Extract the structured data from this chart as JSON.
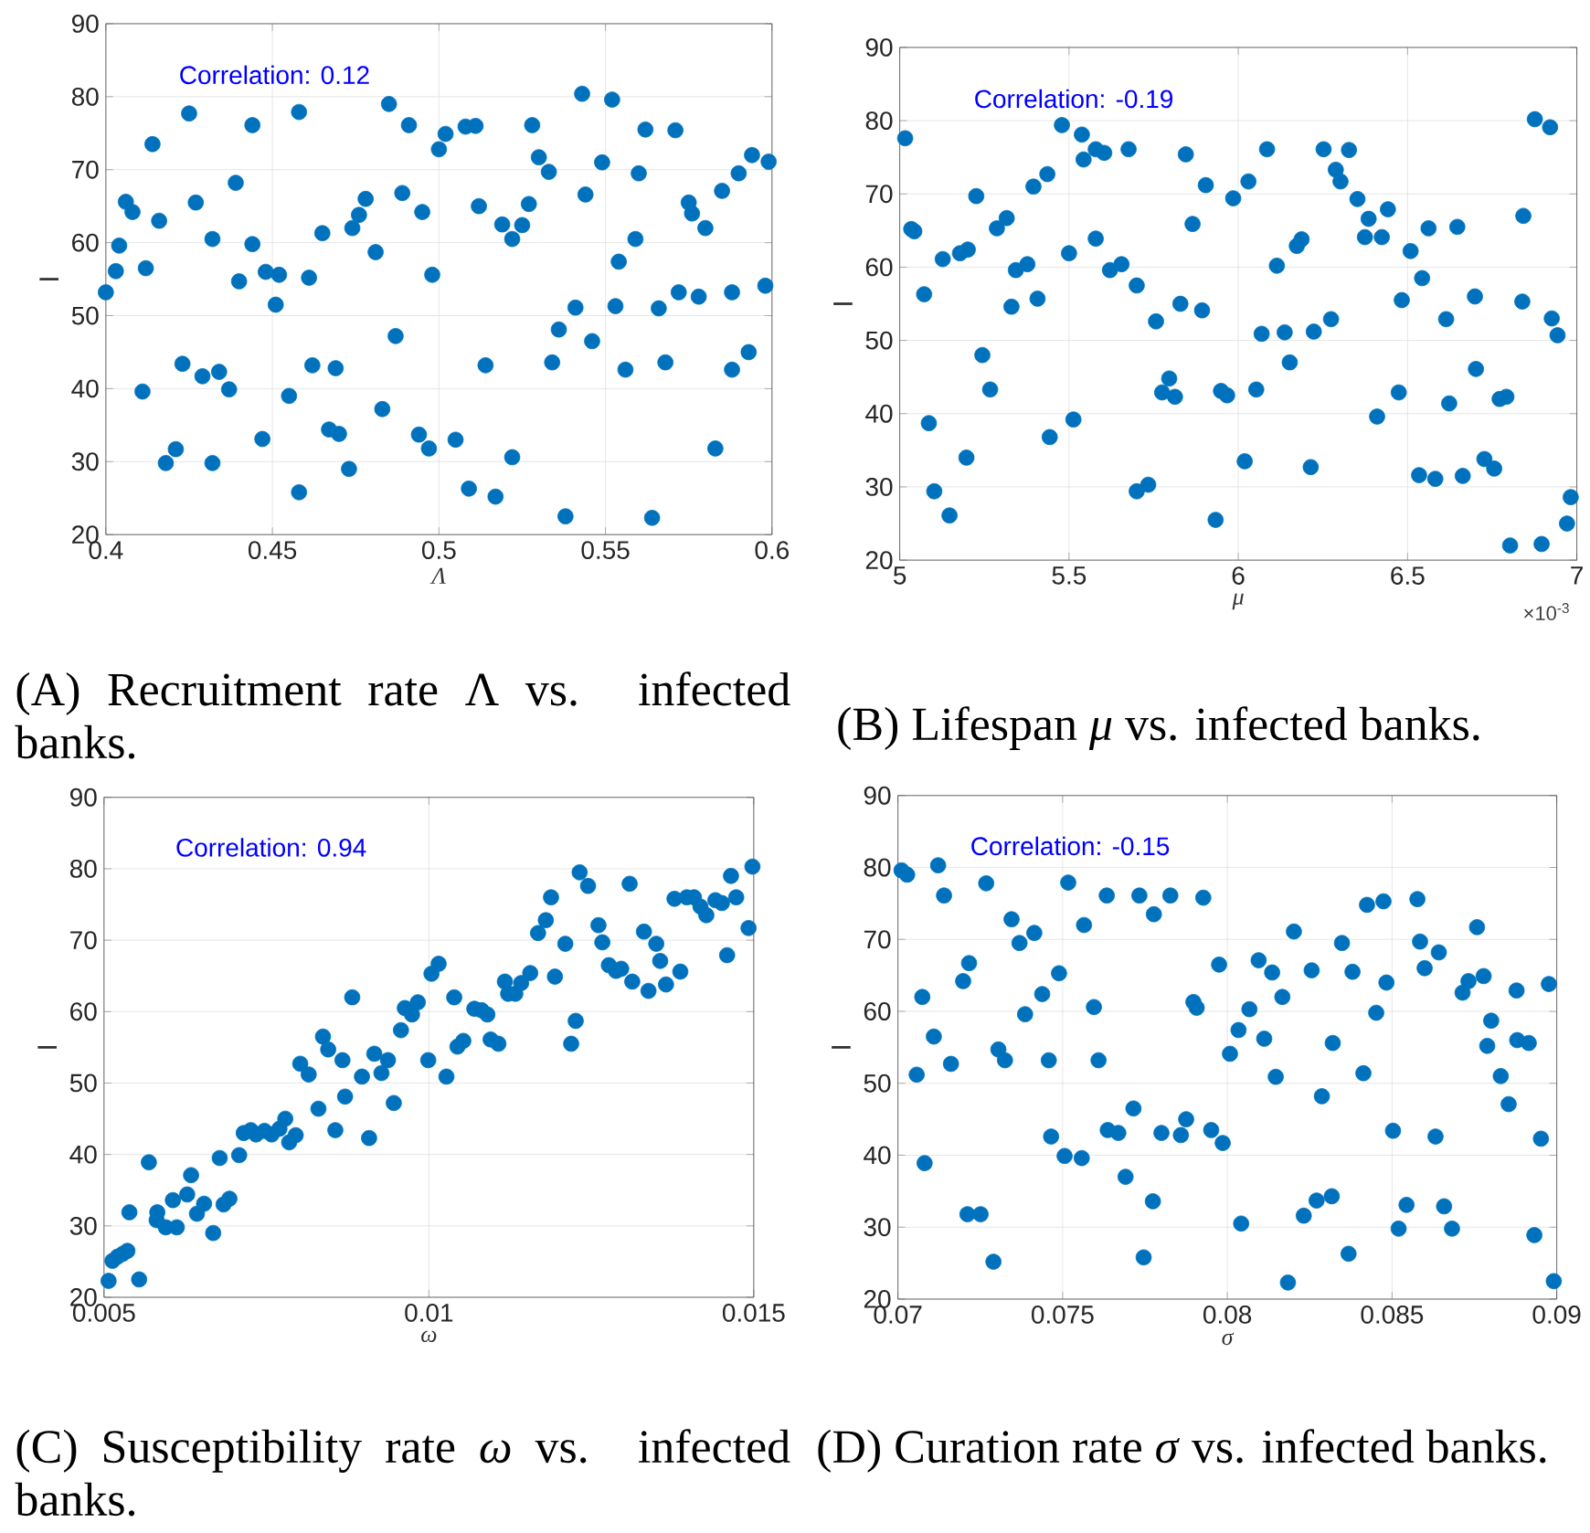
{
  "chart_data": [
    {
      "type": "scatter",
      "title": "(A) Recruitment rate Λ vs. infected banks.",
      "xlabel": "Λ",
      "ylabel": "I",
      "xlim": [
        0.4,
        0.6
      ],
      "ylim": [
        20,
        90
      ],
      "xticks": [
        0.4,
        0.45,
        0.5,
        0.55,
        0.6
      ],
      "yticks": [
        20,
        30,
        40,
        50,
        60,
        70,
        80,
        90
      ],
      "grid": true,
      "marker": "circle",
      "annotations": [
        "Correlation: 0.12"
      ],
      "series": [
        {
          "color": "#0072bd",
          "x": [
            0.4,
            0.403,
            0.404,
            0.406,
            0.408,
            0.414,
            0.416,
            0.412,
            0.411,
            0.418,
            0.421,
            0.423,
            0.425,
            0.427,
            0.429,
            0.432,
            0.434,
            0.437,
            0.432,
            0.439,
            0.44,
            0.444,
            0.444,
            0.447,
            0.448,
            0.452,
            0.451,
            0.455,
            0.458,
            0.458,
            0.461,
            0.462,
            0.465,
            0.467,
            0.47,
            0.469,
            0.473,
            0.474,
            0.476,
            0.478,
            0.481,
            0.483,
            0.485,
            0.487,
            0.489,
            0.491,
            0.494,
            0.495,
            0.497,
            0.498,
            0.5,
            0.502,
            0.505,
            0.508,
            0.511,
            0.512,
            0.509,
            0.514,
            0.519,
            0.517,
            0.522,
            0.522,
            0.525,
            0.527,
            0.528,
            0.53,
            0.533,
            0.534,
            0.536,
            0.538,
            0.541,
            0.543,
            0.544,
            0.546,
            0.549,
            0.552,
            0.553,
            0.554,
            0.556,
            0.559,
            0.56,
            0.562,
            0.564,
            0.566,
            0.568,
            0.571,
            0.572,
            0.575,
            0.576,
            0.578,
            0.58,
            0.583,
            0.585,
            0.588,
            0.588,
            0.59,
            0.593,
            0.594,
            0.598,
            0.599
          ],
          "values": [
            53.2,
            56.1,
            59.6,
            65.6,
            64.2,
            73.5,
            63.0,
            56.5,
            39.6,
            29.8,
            31.7,
            43.4,
            77.7,
            65.5,
            41.7,
            60.5,
            42.3,
            39.9,
            29.8,
            68.2,
            54.7,
            59.8,
            76.1,
            33.1,
            56.0,
            55.6,
            51.5,
            39.0,
            77.9,
            25.8,
            55.2,
            43.2,
            61.3,
            34.4,
            33.8,
            42.8,
            29.0,
            62.0,
            63.8,
            66.0,
            58.7,
            37.2,
            79.0,
            47.2,
            66.8,
            76.1,
            33.7,
            64.2,
            31.8,
            55.6,
            72.8,
            74.9,
            33.0,
            75.9,
            76.0,
            65.0,
            26.3,
            43.2,
            62.5,
            25.2,
            60.5,
            30.6,
            62.4,
            65.3,
            76.1,
            71.7,
            69.7,
            43.6,
            48.1,
            22.5,
            51.1,
            80.4,
            66.6,
            46.5,
            71.0,
            79.6,
            51.3,
            57.4,
            42.6,
            60.5,
            69.5,
            75.5,
            22.3,
            51.0,
            43.6,
            75.4,
            53.2,
            65.5,
            64.0,
            52.6,
            62.0,
            31.8,
            67.1,
            42.6,
            53.2,
            69.5,
            45.0,
            72.0,
            54.1,
            71.1
          ]
        }
      ]
    },
    {
      "type": "scatter",
      "title": "(B) Lifespan *μ* vs. infected banks.",
      "xlabel": "μ",
      "ylabel": "I",
      "xlim": [
        5,
        7
      ],
      "ylim": [
        20,
        90
      ],
      "xticks": [
        5,
        5.5,
        6,
        6.5,
        7
      ],
      "yticks": [
        20,
        30,
        40,
        50,
        60,
        70,
        80,
        90
      ],
      "grid": true,
      "marker": "circle",
      "annotations": [
        "Correlation: -0.19",
        "×10$^{-3}$"
      ],
      "series": [
        {
          "color": "#0072bd",
          "x": [
            5.016,
            5.034,
            5.043,
            5.072,
            5.086,
            5.102,
            5.127,
            5.147,
            5.178,
            5.201,
            5.197,
            5.226,
            5.244,
            5.267,
            5.287,
            5.316,
            5.33,
            5.343,
            5.377,
            5.395,
            5.407,
            5.436,
            5.443,
            5.479,
            5.5,
            5.513,
            5.538,
            5.543,
            5.579,
            5.604,
            5.579,
            5.621,
            5.655,
            5.676,
            5.7,
            5.7,
            5.734,
            5.757,
            5.775,
            5.796,
            5.813,
            5.829,
            5.845,
            5.865,
            5.893,
            5.904,
            5.933,
            5.949,
            5.967,
            5.985,
            6.019,
            6.03,
            6.053,
            6.069,
            6.085,
            6.114,
            6.137,
            6.152,
            6.173,
            6.187,
            6.214,
            6.223,
            6.252,
            6.274,
            6.288,
            6.302,
            6.327,
            6.352,
            6.374,
            6.385,
            6.424,
            6.41,
            6.442,
            6.474,
            6.483,
            6.509,
            6.534,
            6.543,
            6.562,
            6.582,
            6.614,
            6.623,
            6.647,
            6.663,
            6.699,
            6.702,
            6.727,
            6.756,
            6.772,
            6.792,
            6.803,
            6.839,
            6.842,
            6.876,
            6.896,
            6.921,
            6.926,
            6.943,
            6.971,
            6.982
          ],
          "values": [
            77.6,
            65.2,
            64.9,
            56.3,
            38.7,
            29.4,
            61.1,
            26.1,
            61.9,
            62.4,
            34.0,
            69.7,
            48.0,
            43.3,
            65.3,
            66.7,
            54.6,
            59.6,
            60.4,
            71.0,
            55.7,
            72.7,
            36.8,
            79.4,
            61.9,
            39.2,
            78.1,
            74.7,
            76.1,
            75.6,
            63.9,
            59.6,
            60.4,
            76.1,
            57.5,
            29.4,
            30.3,
            52.6,
            42.9,
            44.8,
            42.3,
            55.0,
            75.4,
            65.9,
            54.1,
            71.2,
            25.5,
            43.1,
            42.5,
            69.4,
            33.5,
            71.7,
            43.3,
            50.9,
            76.1,
            60.2,
            51.1,
            47.0,
            62.9,
            63.8,
            32.7,
            51.2,
            76.1,
            52.9,
            73.3,
            71.7,
            76.0,
            69.3,
            64.1,
            66.6,
            64.1,
            39.6,
            67.9,
            42.9,
            55.5,
            62.2,
            31.6,
            58.5,
            65.3,
            31.1,
            52.9,
            41.4,
            65.5,
            31.5,
            56.0,
            46.1,
            33.8,
            32.5,
            42.0,
            42.3,
            22.0,
            55.3,
            67.0,
            80.2,
            22.2,
            79.1,
            53.0,
            50.7,
            25.0,
            28.6
          ]
        }
      ]
    },
    {
      "type": "scatter",
      "title": "(C) Susceptibility rate *ω* vs. infected banks.",
      "xlabel": "ω",
      "ylabel": "I",
      "xlim": [
        0.005,
        0.015
      ],
      "ylim": [
        20,
        90
      ],
      "xticks": [
        0.005,
        0.01,
        0.015
      ],
      "yticks": [
        20,
        30,
        40,
        50,
        60,
        70,
        80,
        90
      ],
      "grid": true,
      "marker": "circle",
      "annotations": [
        "Correlation: 0.94"
      ],
      "series": [
        {
          "color": "#0072bd",
          "x": [
            0.00507,
            0.00513,
            0.00521,
            0.00529,
            0.00536,
            0.00539,
            0.00554,
            0.00569,
            0.00581,
            0.00582,
            0.00595,
            0.00606,
            0.00612,
            0.00628,
            0.00634,
            0.00643,
            0.00654,
            0.00668,
            0.00678,
            0.00684,
            0.00693,
            0.00708,
            0.00715,
            0.00726,
            0.00734,
            0.00747,
            0.00758,
            0.0077,
            0.00779,
            0.00785,
            0.00795,
            0.00802,
            0.00815,
            0.0083,
            0.00837,
            0.00845,
            0.00856,
            0.00867,
            0.00871,
            0.00882,
            0.00897,
            0.00908,
            0.00916,
            0.00927,
            0.00937,
            0.00946,
            0.00957,
            0.00963,
            0.00974,
            0.00983,
            0.00999,
            0.01004,
            0.01015,
            0.01027,
            0.01039,
            0.01044,
            0.01053,
            0.0107,
            0.01081,
            0.0109,
            0.01095,
            0.01107,
            0.01117,
            0.01122,
            0.01133,
            0.01142,
            0.01156,
            0.01168,
            0.0118,
            0.01188,
            0.01194,
            0.0121,
            0.01219,
            0.01226,
            0.01232,
            0.01245,
            0.01261,
            0.01267,
            0.01277,
            0.01288,
            0.01296,
            0.01309,
            0.01313,
            0.01331,
            0.01338,
            0.0135,
            0.01356,
            0.01365,
            0.01378,
            0.01387,
            0.01397,
            0.01408,
            0.01418,
            0.01427,
            0.01441,
            0.01451,
            0.01459,
            0.01465,
            0.01473,
            0.01492,
            0.01498
          ],
          "values": [
            22.3,
            25.1,
            25.7,
            26.1,
            26.5,
            31.9,
            22.5,
            38.9,
            30.8,
            31.9,
            29.8,
            33.6,
            29.8,
            34.4,
            37.1,
            31.7,
            33.1,
            29.0,
            39.5,
            33.0,
            33.8,
            39.9,
            43.0,
            43.4,
            42.8,
            43.3,
            42.8,
            43.6,
            45.0,
            41.7,
            42.7,
            52.7,
            51.2,
            46.4,
            56.5,
            54.7,
            43.4,
            53.2,
            48.1,
            62.0,
            50.9,
            42.3,
            54.1,
            51.4,
            53.2,
            47.2,
            57.4,
            60.5,
            59.6,
            61.3,
            53.2,
            65.3,
            66.7,
            50.9,
            62.0,
            55.1,
            55.9,
            60.4,
            60.2,
            59.6,
            56.1,
            55.5,
            64.2,
            62.5,
            62.5,
            64.0,
            65.4,
            71.0,
            72.8,
            76.0,
            64.9,
            69.5,
            55.5,
            58.7,
            79.5,
            77.6,
            72.1,
            69.7,
            66.5,
            65.7,
            66.0,
            77.9,
            64.2,
            71.2,
            62.9,
            69.5,
            67.1,
            63.8,
            75.8,
            65.6,
            76.0,
            76.0,
            74.7,
            73.5,
            75.6,
            75.2,
            67.9,
            79.0,
            76.0,
            71.7,
            80.3
          ]
        }
      ]
    },
    {
      "type": "scatter",
      "title": "(D) Curation rate *σ* vs. infected banks.",
      "xlabel": "σ",
      "ylabel": "I",
      "xlim": [
        0.07,
        0.09
      ],
      "ylim": [
        20,
        90
      ],
      "xticks": [
        0.07,
        0.075,
        0.08,
        0.085,
        0.09
      ],
      "yticks": [
        20,
        30,
        40,
        50,
        60,
        70,
        80,
        90
      ],
      "grid": true,
      "marker": "circle",
      "annotations": [
        "Correlation: -0.15"
      ],
      "series": [
        {
          "color": "#0072bd",
          "x": [
            0.07011,
            0.07028,
            0.07057,
            0.07074,
            0.07081,
            0.07109,
            0.07122,
            0.0714,
            0.07161,
            0.07198,
            0.07216,
            0.07211,
            0.07251,
            0.07268,
            0.0729,
            0.07305,
            0.07325,
            0.07345,
            0.07369,
            0.07386,
            0.07414,
            0.07438,
            0.07458,
            0.07465,
            0.07489,
            0.07506,
            0.07517,
            0.07558,
            0.07565,
            0.07595,
            0.07609,
            0.07634,
            0.07637,
            0.07669,
            0.07691,
            0.07715,
            0.07733,
            0.07746,
            0.07774,
            0.07777,
            0.078,
            0.07827,
            0.07859,
            0.07875,
            0.07897,
            0.07907,
            0.07927,
            0.07951,
            0.07975,
            0.07986,
            0.08008,
            0.08034,
            0.08042,
            0.08067,
            0.08095,
            0.08112,
            0.08136,
            0.08147,
            0.08167,
            0.08184,
            0.08202,
            0.08232,
            0.08256,
            0.08271,
            0.08287,
            0.08317,
            0.0832,
            0.08348,
            0.08368,
            0.0838,
            0.08413,
            0.08424,
            0.08452,
            0.08474,
            0.08483,
            0.08503,
            0.0852,
            0.08544,
            0.08577,
            0.08585,
            0.08599,
            0.08632,
            0.08642,
            0.08658,
            0.08682,
            0.08714,
            0.08732,
            0.08758,
            0.08778,
            0.08789,
            0.08801,
            0.0883,
            0.08854,
            0.08878,
            0.0888,
            0.08915,
            0.08932,
            0.08952,
            0.08976,
            0.08991
          ],
          "values": [
            79.6,
            79.0,
            51.2,
            62.0,
            38.9,
            56.5,
            80.3,
            76.1,
            52.7,
            64.2,
            66.7,
            31.8,
            31.8,
            77.8,
            25.2,
            54.7,
            53.2,
            72.8,
            69.5,
            59.6,
            70.9,
            62.4,
            53.2,
            42.6,
            65.3,
            39.9,
            77.9,
            39.6,
            72.0,
            60.6,
            53.2,
            76.1,
            43.5,
            43.1,
            37.0,
            46.5,
            76.1,
            25.8,
            33.6,
            73.5,
            43.1,
            76.1,
            42.8,
            45.0,
            61.3,
            60.5,
            75.8,
            43.5,
            66.5,
            41.7,
            54.1,
            57.4,
            30.5,
            60.3,
            67.1,
            56.2,
            65.4,
            50.9,
            62.0,
            22.3,
            71.1,
            31.6,
            65.7,
            33.7,
            48.2,
            34.3,
            55.6,
            69.5,
            26.3,
            65.5,
            51.4,
            74.8,
            59.8,
            75.3,
            64.0,
            43.4,
            29.8,
            33.1,
            75.6,
            69.7,
            66.0,
            42.6,
            68.2,
            32.9,
            29.8,
            62.6,
            64.2,
            71.7,
            64.9,
            55.2,
            58.7,
            51.0,
            47.1,
            62.9,
            56.0,
            55.6,
            28.9,
            42.3,
            63.8,
            22.5
          ]
        }
      ]
    }
  ]
}
